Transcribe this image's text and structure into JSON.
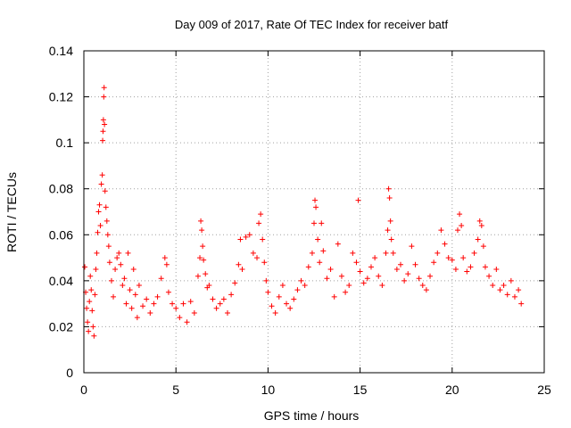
{
  "chart_data": {
    "type": "scatter",
    "title": "Day 009 of 2017, Rate Of TEC Index for receiver batf",
    "xlabel": "GPS time / hours",
    "ylabel": "ROTI / TECUs",
    "xlim": [
      0,
      25
    ],
    "ylim": [
      0,
      0.14
    ],
    "xticks": [
      0,
      5,
      10,
      15,
      20,
      25
    ],
    "yticks": [
      0,
      0.02,
      0.04,
      0.06,
      0.08,
      0.1,
      0.12,
      0.14
    ],
    "xtick_labels": [
      "0",
      "5",
      "10",
      "15",
      "20",
      "25"
    ],
    "ytick_labels": [
      "0",
      "0.02",
      "0.04",
      "0.06",
      "0.08",
      "0.1",
      "0.12",
      "0.14"
    ],
    "grid": true,
    "marker": "+",
    "color": "#ff0000",
    "points": [
      [
        0.05,
        0.046
      ],
      [
        0.1,
        0.035
      ],
      [
        0.15,
        0.028
      ],
      [
        0.2,
        0.022
      ],
      [
        0.25,
        0.018
      ],
      [
        0.3,
        0.031
      ],
      [
        0.35,
        0.042
      ],
      [
        0.4,
        0.036
      ],
      [
        0.45,
        0.027
      ],
      [
        0.5,
        0.02
      ],
      [
        0.55,
        0.016
      ],
      [
        0.6,
        0.034
      ],
      [
        0.65,
        0.045
      ],
      [
        0.7,
        0.052
      ],
      [
        0.75,
        0.061
      ],
      [
        0.8,
        0.07
      ],
      [
        0.85,
        0.073
      ],
      [
        0.9,
        0.064
      ],
      [
        0.95,
        0.082
      ],
      [
        1.0,
        0.086
      ],
      [
        1.02,
        0.101
      ],
      [
        1.04,
        0.105
      ],
      [
        1.06,
        0.11
      ],
      [
        1.08,
        0.12
      ],
      [
        1.1,
        0.124
      ],
      [
        1.12,
        0.108
      ],
      [
        1.15,
        0.079
      ],
      [
        1.2,
        0.072
      ],
      [
        1.25,
        0.066
      ],
      [
        1.3,
        0.06
      ],
      [
        1.35,
        0.055
      ],
      [
        1.4,
        0.048
      ],
      [
        1.5,
        0.04
      ],
      [
        1.6,
        0.033
      ],
      [
        1.7,
        0.045
      ],
      [
        1.8,
        0.05
      ],
      [
        1.9,
        0.052
      ],
      [
        2.0,
        0.047
      ],
      [
        2.1,
        0.038
      ],
      [
        2.2,
        0.041
      ],
      [
        2.3,
        0.03
      ],
      [
        2.4,
        0.052
      ],
      [
        2.5,
        0.036
      ],
      [
        2.6,
        0.028
      ],
      [
        2.7,
        0.045
      ],
      [
        2.8,
        0.034
      ],
      [
        2.9,
        0.024
      ],
      [
        3.0,
        0.038
      ],
      [
        3.2,
        0.029
      ],
      [
        3.4,
        0.032
      ],
      [
        3.6,
        0.026
      ],
      [
        3.8,
        0.03
      ],
      [
        4.0,
        0.033
      ],
      [
        4.2,
        0.041
      ],
      [
        4.4,
        0.05
      ],
      [
        4.5,
        0.047
      ],
      [
        4.6,
        0.035
      ],
      [
        4.8,
        0.03
      ],
      [
        5.0,
        0.028
      ],
      [
        5.2,
        0.024
      ],
      [
        5.4,
        0.03
      ],
      [
        5.6,
        0.022
      ],
      [
        5.8,
        0.031
      ],
      [
        6.0,
        0.026
      ],
      [
        6.2,
        0.042
      ],
      [
        6.3,
        0.05
      ],
      [
        6.35,
        0.066
      ],
      [
        6.4,
        0.062
      ],
      [
        6.45,
        0.055
      ],
      [
        6.5,
        0.049
      ],
      [
        6.6,
        0.043
      ],
      [
        6.7,
        0.037
      ],
      [
        6.8,
        0.038
      ],
      [
        7.0,
        0.032
      ],
      [
        7.2,
        0.028
      ],
      [
        7.4,
        0.03
      ],
      [
        7.6,
        0.032
      ],
      [
        7.8,
        0.026
      ],
      [
        8.0,
        0.034
      ],
      [
        8.2,
        0.039
      ],
      [
        8.4,
        0.047
      ],
      [
        8.5,
        0.058
      ],
      [
        8.6,
        0.045
      ],
      [
        8.8,
        0.059
      ],
      [
        9.0,
        0.06
      ],
      [
        9.2,
        0.052
      ],
      [
        9.4,
        0.05
      ],
      [
        9.5,
        0.065
      ],
      [
        9.6,
        0.069
      ],
      [
        9.7,
        0.058
      ],
      [
        9.8,
        0.048
      ],
      [
        9.9,
        0.04
      ],
      [
        10.0,
        0.035
      ],
      [
        10.2,
        0.029
      ],
      [
        10.4,
        0.026
      ],
      [
        10.6,
        0.033
      ],
      [
        10.8,
        0.038
      ],
      [
        11.0,
        0.03
      ],
      [
        11.2,
        0.028
      ],
      [
        11.4,
        0.032
      ],
      [
        11.6,
        0.036
      ],
      [
        11.8,
        0.04
      ],
      [
        12.0,
        0.038
      ],
      [
        12.2,
        0.046
      ],
      [
        12.4,
        0.052
      ],
      [
        12.5,
        0.065
      ],
      [
        12.55,
        0.075
      ],
      [
        12.6,
        0.072
      ],
      [
        12.7,
        0.058
      ],
      [
        12.8,
        0.048
      ],
      [
        12.9,
        0.065
      ],
      [
        13.0,
        0.053
      ],
      [
        13.2,
        0.041
      ],
      [
        13.4,
        0.045
      ],
      [
        13.6,
        0.033
      ],
      [
        13.8,
        0.056
      ],
      [
        14.0,
        0.042
      ],
      [
        14.2,
        0.035
      ],
      [
        14.4,
        0.038
      ],
      [
        14.6,
        0.052
      ],
      [
        14.8,
        0.048
      ],
      [
        14.9,
        0.075
      ],
      [
        15.0,
        0.044
      ],
      [
        15.2,
        0.039
      ],
      [
        15.4,
        0.041
      ],
      [
        15.6,
        0.046
      ],
      [
        15.8,
        0.05
      ],
      [
        16.0,
        0.042
      ],
      [
        16.2,
        0.038
      ],
      [
        16.4,
        0.052
      ],
      [
        16.5,
        0.062
      ],
      [
        16.55,
        0.08
      ],
      [
        16.6,
        0.076
      ],
      [
        16.65,
        0.066
      ],
      [
        16.7,
        0.058
      ],
      [
        16.8,
        0.052
      ],
      [
        17.0,
        0.045
      ],
      [
        17.2,
        0.047
      ],
      [
        17.4,
        0.04
      ],
      [
        17.6,
        0.043
      ],
      [
        17.8,
        0.055
      ],
      [
        18.0,
        0.047
      ],
      [
        18.2,
        0.041
      ],
      [
        18.4,
        0.038
      ],
      [
        18.6,
        0.036
      ],
      [
        18.8,
        0.042
      ],
      [
        19.0,
        0.048
      ],
      [
        19.2,
        0.052
      ],
      [
        19.4,
        0.062
      ],
      [
        19.6,
        0.056
      ],
      [
        19.8,
        0.05
      ],
      [
        20.0,
        0.049
      ],
      [
        20.2,
        0.045
      ],
      [
        20.3,
        0.062
      ],
      [
        20.4,
        0.069
      ],
      [
        20.5,
        0.064
      ],
      [
        20.6,
        0.05
      ],
      [
        20.8,
        0.044
      ],
      [
        21.0,
        0.046
      ],
      [
        21.2,
        0.052
      ],
      [
        21.4,
        0.058
      ],
      [
        21.5,
        0.066
      ],
      [
        21.6,
        0.064
      ],
      [
        21.7,
        0.055
      ],
      [
        21.8,
        0.046
      ],
      [
        22.0,
        0.042
      ],
      [
        22.2,
        0.038
      ],
      [
        22.4,
        0.045
      ],
      [
        22.6,
        0.036
      ],
      [
        22.8,
        0.038
      ],
      [
        23.0,
        0.034
      ],
      [
        23.2,
        0.04
      ],
      [
        23.4,
        0.033
      ],
      [
        23.6,
        0.036
      ],
      [
        23.75,
        0.03
      ]
    ]
  }
}
